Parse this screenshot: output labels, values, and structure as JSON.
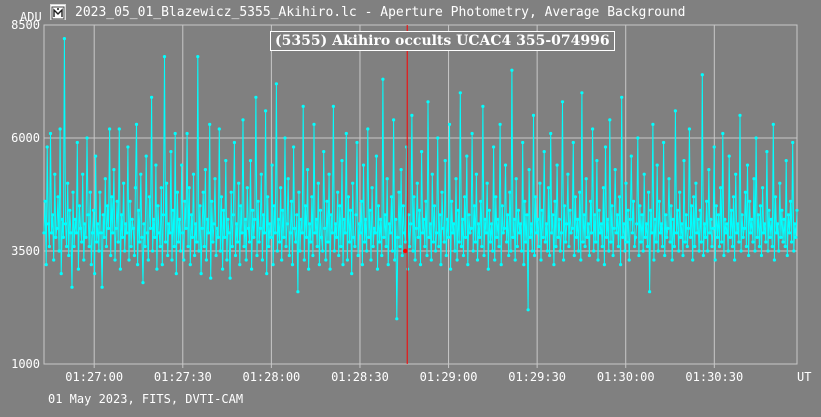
{
  "window": {
    "title": "2023_05_01_Blazewicz_5355_Akihiro.lc - Aperture Photometry, Average Background",
    "icon": "app-icon"
  },
  "footer": "01 May 2023, FITS, DVTI-CAM",
  "colors": {
    "background": "#808080",
    "series": "#00ffff",
    "marker": "#ff0000",
    "grid": "#c8c8c8",
    "text": "#ffffff"
  },
  "chart_data": {
    "type": "line",
    "title": "(5355) Akihiro occults UCAC4 355-074996",
    "ylabel": "ADU",
    "xlabel": "UT",
    "ylim": [
      1000,
      8500
    ],
    "yticks": [
      1000,
      3500,
      6000,
      8500
    ],
    "ytick_labels": [
      "1000",
      "3500",
      "6000",
      "8500"
    ],
    "xlim_seconds_past": [
      "01:26:43",
      "01:30:58"
    ],
    "xticks": [
      "01:27:00",
      "01:27:30",
      "01:28:00",
      "01:28:30",
      "01:29:00",
      "01:29:30",
      "01:30:00",
      "01:30:30"
    ],
    "event_time": "01:28:46",
    "grid": true,
    "series": [
      {
        "color": "#00ffff",
        "x_start": "01:26:43",
        "x_end": "01:30:58",
        "values": [
          3900,
          4600,
          3200,
          5800,
          4100,
          3600,
          6100,
          3900,
          4300,
          3300,
          5200,
          3800,
          4000,
          4700,
          3500,
          6200,
          3000,
          4200,
          3800,
          8200,
          4100,
          3600,
          5000,
          3400,
          4400,
          3900,
          2700,
          4800,
          3600,
          4200,
          3900,
          5900,
          3100,
          4500,
          4000,
          3700,
          5200,
          3300,
          4100,
          3800,
          6000,
          4300,
          3600,
          4800,
          3200,
          3900,
          4400,
          3000,
          5600,
          3700,
          4100,
          3500,
          4800,
          3900,
          2700,
          4300,
          3800,
          5100,
          3600,
          4500,
          4000,
          6200,
          3400,
          4700,
          3900,
          5300,
          3300,
          4000,
          4600,
          3700,
          6200,
          3100,
          4300,
          3800,
          5000,
          3500,
          4100,
          3900,
          5800,
          3300,
          4600,
          3600,
          4200,
          4000,
          3400,
          4900,
          6300,
          3200,
          4400,
          3700,
          5200,
          3800,
          2800,
          4100,
          3600,
          5600,
          3900,
          3300,
          4700,
          4000,
          6900,
          3500,
          4200,
          3800,
          5400,
          3100,
          4500,
          3900,
          3600,
          4900,
          3200,
          4300,
          7800,
          3700,
          5000,
          3400,
          4100,
          3900,
          5700,
          3300,
          4400,
          3600,
          6100,
          3000,
          4800,
          3700,
          4200,
          3500,
          5400,
          3900,
          3300,
          4600,
          4000,
          6100,
          3600,
          4900,
          3200,
          4300,
          3800,
          5200,
          3400,
          4100,
          3700,
          7800,
          3500,
          4500,
          3000,
          4000,
          4800,
          3600,
          5300,
          3300,
          4200,
          3900,
          6300,
          2900,
          4600,
          3700,
          4100,
          5100,
          3400,
          4000,
          3800,
          6200,
          3500,
          4700,
          3100,
          4400,
          3800,
          5500,
          3300,
          4200,
          3900,
          2900,
          4800,
          3600,
          4300,
          5900,
          3400,
          4100,
          3700,
          5000,
          3200,
          4500,
          3900,
          6400,
          3600,
          4200,
          3300,
          4900,
          4000,
          3700,
          5500,
          3100,
          4400,
          3800,
          4200,
          6900,
          3400,
          4600,
          3700,
          4000,
          5200,
          3300,
          4300,
          3900,
          6600,
          3000,
          4700,
          3600,
          4100,
          3800,
          5400,
          3200,
          4500,
          3900,
          7200,
          3500,
          4200,
          3700,
          4900,
          3300,
          4400,
          3800,
          6000,
          3600,
          4100,
          5100,
          3400,
          3900,
          4600,
          3200,
          5800,
          4000,
          3700,
          4300,
          2600,
          4800,
          3500,
          4200,
          3900,
          6700,
          3300,
          4500,
          3800,
          5300,
          3100,
          4100,
          3700,
          4700,
          3400,
          6300,
          3900,
          4200,
          3600,
          5000,
          3200,
          4400,
          3800,
          3500,
          5700,
          4000,
          3300,
          4600,
          3700,
          5200,
          3100,
          4300,
          3900,
          6700,
          3500,
          4100,
          3800,
          4800,
          3400,
          4500,
          3600,
          5500,
          3200,
          4200,
          3900,
          6100,
          3300,
          4700,
          3700,
          4400,
          3000,
          5000,
          3800,
          3600,
          4300,
          5900,
          3400,
          4100,
          3900,
          4600,
          3200,
          5400,
          3700,
          4200,
          3500,
          6200,
          3800,
          4400,
          3300,
          4900,
          3600,
          4000,
          3900,
          5600,
          3100,
          4500,
          3700,
          4200,
          3400,
          7300,
          3800,
          4300,
          3600,
          5100,
          3200,
          4100,
          3900,
          4700,
          3500,
          6400,
          3300,
          4200,
          2000,
          3800,
          4800,
          3600,
          5300,
          3400,
          4500,
          3900,
          3700,
          5800,
          3100,
          4300,
          3600,
          4100,
          6500,
          3500,
          4700,
          3300,
          4000,
          5000,
          3800,
          4400,
          3200,
          5700,
          3900,
          4200,
          3600,
          4600,
          3400,
          6800,
          3800,
          4100,
          3300,
          5200,
          3700,
          4500,
          3500,
          3900,
          6000,
          3600,
          4300,
          3200,
          4800,
          4000,
          3700,
          5500,
          3400,
          4200,
          3800,
          6300,
          3100,
          4600,
          3900,
          4100,
          3500,
          5100,
          3300,
          4400,
          3700,
          7000,
          3600,
          4200,
          3400,
          4700,
          3800,
          5600,
          3200,
          4300,
          3900,
          4000,
          6100,
          3500,
          4500,
          3700,
          5200,
          3300,
          4100,
          3800,
          4600,
          3600,
          6700,
          3400,
          4200,
          3900,
          5000,
          3100,
          4400,
          3700,
          4100,
          3500,
          5800,
          3300,
          4700,
          3800,
          4200,
          3600,
          6300,
          3200,
          4500,
          3900,
          4000,
          5400,
          3700,
          4300,
          3400,
          4800,
          3500,
          7500,
          3800,
          4200,
          3300,
          5100,
          3600,
          4400,
          3900,
          4100,
          3500,
          5900,
          3200,
          4600,
          3700,
          4300,
          2200,
          5300,
          3800,
          4100,
          3500,
          6500,
          3400,
          4700,
          3900,
          4200,
          3600,
          5000,
          3300,
          4400,
          3800,
          5700,
          3700,
          4100,
          3500,
          4900,
          3400,
          6100,
          3900,
          4300,
          3200,
          4600,
          3600,
          5400,
          3800,
          4200,
          3500,
          3900,
          6800,
          3300,
          4500,
          3700,
          4100,
          5200,
          3600,
          4400,
          3900,
          4000,
          5900,
          3400,
          4700,
          3800,
          4200,
          3500,
          4800,
          3300,
          7000,
          3700,
          4300,
          3600,
          5100,
          3800,
          4100,
          3400,
          4600,
          3900,
          6200,
          3500,
          4300,
          3700,
          5500,
          3300,
          4400,
          3900,
          4100,
          3600,
          4900,
          3200,
          5800,
          3800,
          4200,
          3500,
          6400,
          3700,
          4500,
          3400,
          4000,
          5300,
          3900,
          4300,
          3600,
          4700,
          3200,
          6900,
          3800,
          4100,
          3500,
          5000,
          3700,
          4400,
          3300,
          4200,
          5600,
          3900,
          4600,
          3600,
          3800,
          4100,
          6000,
          3400,
          4500,
          3700,
          4300,
          3500,
          5200,
          3800,
          4100,
          3600,
          4800,
          2600,
          4400,
          3900,
          6300,
          3300,
          4200,
          3700,
          5400,
          3500,
          4600,
          3900,
          4100,
          3600,
          5900,
          3400,
          4300,
          3800,
          4000,
          5100,
          3700,
          4500,
          3300,
          4200,
          3600,
          6600,
          3900,
          4400,
          3500,
          4800,
          3800,
          4100,
          3400,
          5500,
          3700,
          4300,
          3600,
          4000,
          6200,
          3800,
          4500,
          3300,
          4700,
          3600,
          5000,
          3900,
          4200,
          3500,
          4400,
          3700,
          7400,
          3400,
          4100,
          3800,
          4600,
          3500,
          5300,
          3900,
          4200,
          3600,
          4000,
          5800,
          3300,
          4500,
          3800,
          4300,
          3600,
          4900,
          3700,
          6100,
          3400,
          4200,
          3900,
          4100,
          3500,
          5600,
          3800,
          4400,
          3600,
          4700,
          3300,
          5200,
          3900,
          4100,
          3700,
          6500,
          3500,
          4300,
          3800,
          4000,
          4800,
          3600,
          5400,
          3400,
          4600,
          3900,
          4200,
          3700,
          5100,
          3500,
          6000,
          3800,
          4300,
          3600,
          4500,
          3400,
          4900,
          3900,
          4100,
          3700,
          5700,
          3500,
          4400,
          3800,
          4200,
          3600,
          6300,
          3300,
          4700,
          3900,
          4100,
          3500,
          5000,
          3800,
          4400,
          3700,
          4200,
          3600,
          5500,
          3400,
          4300,
          3900,
          4600,
          3700,
          5900,
          3500,
          4100,
          3800,
          4400
        ]
      }
    ]
  }
}
